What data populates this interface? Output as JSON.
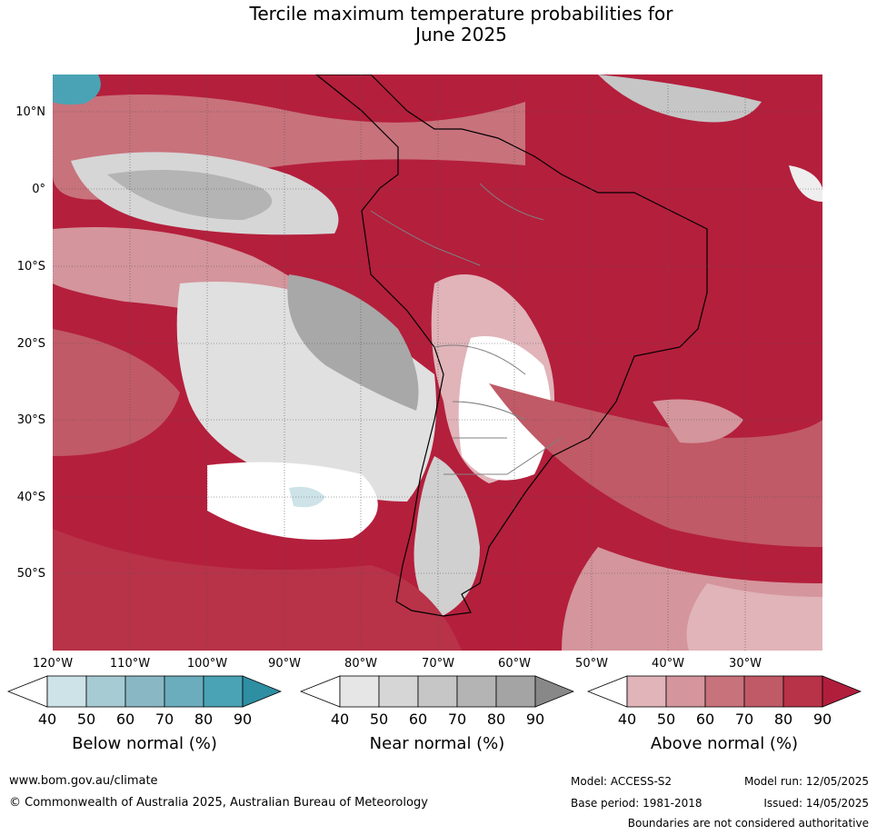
{
  "title": {
    "line1": "Tercile maximum temperature probabilities for",
    "line2": "June 2025"
  },
  "map": {
    "lat_labels": [
      "10°N",
      "0°",
      "10°S",
      "20°S",
      "30°S",
      "40°S",
      "50°S"
    ],
    "lon_labels": [
      "120°W",
      "110°W",
      "100°W",
      "90°W",
      "80°W",
      "70°W",
      "60°W",
      "50°W",
      "40°W",
      "30°W"
    ]
  },
  "colorbars": [
    {
      "title": "Below normal (%)",
      "ticks": [
        "40",
        "50",
        "60",
        "70",
        "80",
        "90"
      ],
      "colors": [
        "#ffffff",
        "#cde3e8",
        "#a7cbd3",
        "#89b8c4",
        "#6badbd",
        "#4aa3b5",
        "#2e8ea2"
      ]
    },
    {
      "title": "Near normal (%)",
      "ticks": [
        "40",
        "50",
        "60",
        "70",
        "80",
        "90"
      ],
      "colors": [
        "#ffffff",
        "#e6e6e6",
        "#d6d6d6",
        "#c6c6c6",
        "#b4b4b4",
        "#a4a4a4",
        "#888888"
      ]
    },
    {
      "title": "Above normal (%)",
      "ticks": [
        "40",
        "50",
        "60",
        "70",
        "80",
        "90"
      ],
      "colors": [
        "#ffffff",
        "#e0b4b9",
        "#d4959c",
        "#c8727c",
        "#c05a66",
        "#b83248",
        "#b01e3c"
      ]
    }
  ],
  "footer": {
    "website": "www.bom.gov.au/climate",
    "copyright": "© Commonwealth of Australia 2025, Australian Bureau of Meteorology",
    "model": "Model: ACCESS-S2",
    "base_period": "Base period: 1981-2018",
    "model_run": "Model run: 12/05/2025",
    "issued": "Issued: 14/05/2025",
    "disclaimer": "Boundaries are not considered authoritative"
  }
}
